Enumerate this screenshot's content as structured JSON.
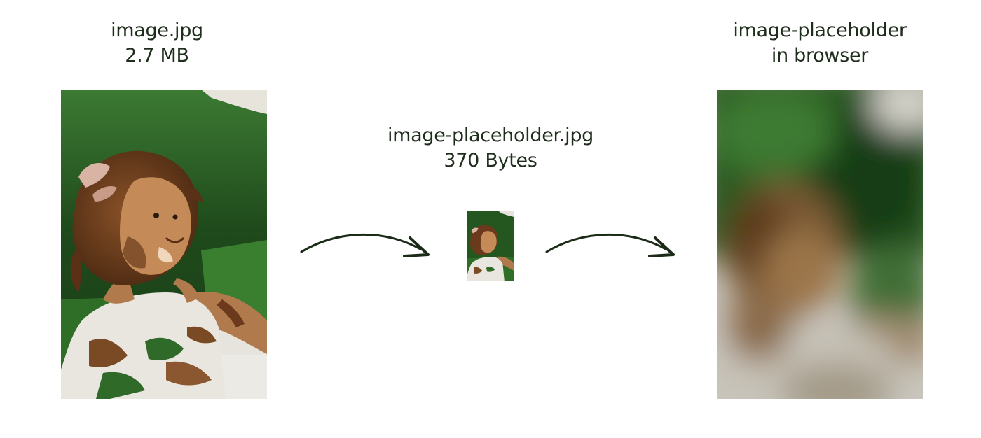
{
  "original": {
    "filename": "image.jpg",
    "size": "2.7 MB"
  },
  "placeholder": {
    "filename": "image-placeholder.jpg",
    "size": "370 Bytes"
  },
  "browser": {
    "line1": "image-placeholder",
    "line2": "in browser"
  },
  "colors": {
    "text": "#1f2d1c",
    "foliage_dark": "#1e4419",
    "foliage": "#2f6a28",
    "skin": "#b07a4c",
    "hair": "#6b3a1c",
    "dress": "#e9e6df"
  },
  "icons": {
    "arrow": "curved-right-arrow-icon"
  }
}
